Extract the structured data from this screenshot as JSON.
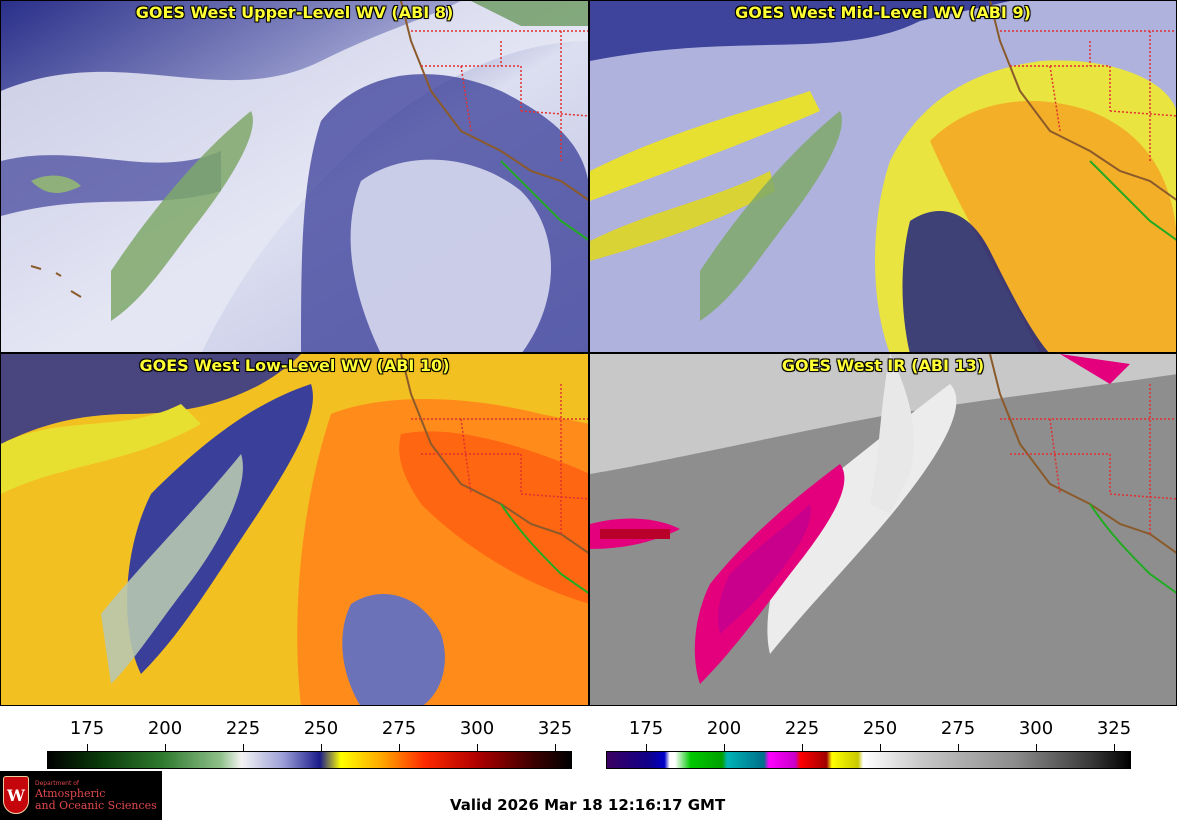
{
  "panels": [
    {
      "title": "GOES West Upper-Level WV (ABI 8)",
      "scheme": "wv_upper"
    },
    {
      "title": "GOES West Mid-Level WV (ABI 9)",
      "scheme": "wv_mid"
    },
    {
      "title": "GOES West Low-Level WV (ABI 10)",
      "scheme": "wv_low"
    },
    {
      "title": "GOES West IR (ABI 13)",
      "scheme": "ir"
    }
  ],
  "colorbars": {
    "wv": {
      "ticks": [
        "175",
        "200",
        "225",
        "250",
        "275",
        "300",
        "325"
      ]
    },
    "ir": {
      "ticks": [
        "175",
        "200",
        "225",
        "250",
        "275",
        "300",
        "325"
      ]
    }
  },
  "logo": {
    "department": "Department of",
    "line1": "Atmospheric",
    "line2": "and Oceanic Sciences",
    "crest_letter": "W"
  },
  "valid_time": "Valid 2026 Mar 18 12:16:17 GMT",
  "colors": {
    "title_text": "#ffff33",
    "state_borders": "#e03030",
    "coastline": "#8b5a2b",
    "mexico_border": "#22aa22"
  }
}
